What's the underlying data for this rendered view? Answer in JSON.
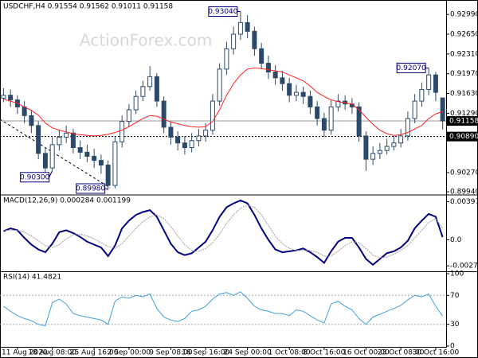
{
  "chart_data": [
    {
      "type": "candlestick",
      "title": "USDCHF,H4  0.91554 0.91562 0.91011 0.91158",
      "watermark": "ActionForex.com",
      "ylim": [
        0.899,
        0.9317
      ],
      "yticks": [
        {
          "value": 0.9299,
          "label": "0.92990"
        },
        {
          "value": 0.9265,
          "label": "0.92650"
        },
        {
          "value": 0.9231,
          "label": "0.92310"
        },
        {
          "value": 0.9197,
          "label": "0.91970"
        },
        {
          "value": 0.9163,
          "label": "0.91630"
        },
        {
          "value": 0.9129,
          "label": "0.91290"
        },
        {
          "value": 0.9027,
          "label": "0.90270"
        },
        {
          "value": 0.8994,
          "label": "0.89940"
        }
      ],
      "candles": {
        "color": "#2b4a6b",
        "open": [
          0.9155,
          0.916,
          0.9152,
          0.914,
          0.9125,
          0.9108,
          0.906,
          0.9035,
          0.9075,
          0.9088,
          0.9095,
          0.907,
          0.9062,
          0.9055,
          0.9048,
          0.904,
          0.9005,
          0.908,
          0.9115,
          0.9135,
          0.9158,
          0.9175,
          0.9192,
          0.915,
          0.9105,
          0.9088,
          0.9078,
          0.907,
          0.9082,
          0.909,
          0.91,
          0.915,
          0.9205,
          0.924,
          0.9265,
          0.9285,
          0.927,
          0.924,
          0.9215,
          0.92,
          0.919,
          0.918,
          0.916,
          0.9165,
          0.9158,
          0.914,
          0.912,
          0.91,
          0.914,
          0.915,
          0.9145,
          0.914,
          0.909,
          0.905,
          0.906,
          0.9065,
          0.9072,
          0.9078,
          0.909,
          0.912,
          0.915,
          0.917,
          0.9195,
          0.91554
        ],
        "high": [
          0.9172,
          0.917,
          0.916,
          0.915,
          0.9135,
          0.9115,
          0.907,
          0.9088,
          0.91,
          0.9108,
          0.9102,
          0.9082,
          0.9075,
          0.9068,
          0.9058,
          0.9048,
          0.909,
          0.9125,
          0.9145,
          0.9168,
          0.9185,
          0.921,
          0.9198,
          0.9158,
          0.9115,
          0.9098,
          0.909,
          0.9095,
          0.9102,
          0.9112,
          0.9162,
          0.9215,
          0.9252,
          0.9278,
          0.9304,
          0.9298,
          0.9278,
          0.925,
          0.9228,
          0.9212,
          0.9202,
          0.919,
          0.9178,
          0.9175,
          0.9168,
          0.915,
          0.913,
          0.9152,
          0.9162,
          0.916,
          0.9155,
          0.9148,
          0.9098,
          0.9072,
          0.9078,
          0.9085,
          0.909,
          0.9102,
          0.9132,
          0.9162,
          0.9182,
          0.9207,
          0.92,
          0.91562
        ],
        "low": [
          0.9148,
          0.914,
          0.9128,
          0.9112,
          0.9095,
          0.905,
          0.9022,
          0.903,
          0.9065,
          0.9078,
          0.906,
          0.905,
          0.9045,
          0.9035,
          0.9025,
          0.8998,
          0.9,
          0.907,
          0.9105,
          0.9128,
          0.915,
          0.9168,
          0.914,
          0.9095,
          0.9075,
          0.9065,
          0.9058,
          0.9062,
          0.9072,
          0.908,
          0.9092,
          0.9142,
          0.9195,
          0.923,
          0.9255,
          0.9258,
          0.9228,
          0.9205,
          0.9188,
          0.9178,
          0.9168,
          0.9148,
          0.915,
          0.9145,
          0.9128,
          0.9108,
          0.9088,
          0.9092,
          0.9132,
          0.9135,
          0.9128,
          0.908,
          0.903,
          0.904,
          0.905,
          0.9058,
          0.9065,
          0.907,
          0.9082,
          0.9112,
          0.914,
          0.916,
          0.915,
          0.91011
        ],
        "close": [
          0.916,
          0.9152,
          0.914,
          0.9125,
          0.9108,
          0.906,
          0.9035,
          0.9075,
          0.9088,
          0.9095,
          0.907,
          0.9062,
          0.9055,
          0.9048,
          0.904,
          0.9005,
          0.908,
          0.9115,
          0.9135,
          0.9158,
          0.9175,
          0.9192,
          0.915,
          0.9105,
          0.9088,
          0.9078,
          0.907,
          0.9082,
          0.909,
          0.91,
          0.915,
          0.9205,
          0.924,
          0.9265,
          0.9285,
          0.927,
          0.924,
          0.9215,
          0.92,
          0.919,
          0.918,
          0.916,
          0.9165,
          0.9158,
          0.914,
          0.912,
          0.91,
          0.914,
          0.915,
          0.9145,
          0.914,
          0.909,
          0.905,
          0.906,
          0.9065,
          0.9072,
          0.9078,
          0.909,
          0.912,
          0.915,
          0.917,
          0.9195,
          0.9165,
          0.91158
        ]
      },
      "series": [
        {
          "color": "#ff2020",
          "values": [
            0.9153,
            0.915,
            0.9146,
            0.914,
            0.9134,
            0.9126,
            0.9112,
            0.9104,
            0.91,
            0.9097,
            0.9094,
            0.9092,
            0.9091,
            0.909,
            0.9091,
            0.9093,
            0.9096,
            0.91,
            0.9106,
            0.9113,
            0.912,
            0.9125,
            0.9124,
            0.9119,
            0.9114,
            0.9111,
            0.9108,
            0.9106,
            0.9105,
            0.9106,
            0.9115,
            0.9135,
            0.916,
            0.918,
            0.9195,
            0.9205,
            0.9207,
            0.9206,
            0.9204,
            0.9202,
            0.92,
            0.9195,
            0.919,
            0.9185,
            0.9176,
            0.9165,
            0.9158,
            0.9152,
            0.9149,
            0.9147,
            0.9145,
            0.9135,
            0.9122,
            0.911,
            0.91,
            0.9094,
            0.9091,
            0.9092,
            0.9096,
            0.9102,
            0.9108,
            0.912,
            0.9128,
            0.9132
          ]
        }
      ],
      "annotations": [
        {
          "value": 0.9304,
          "label": "0.93040"
        },
        {
          "value": 0.9207,
          "label": "0.92070"
        },
        {
          "value": 0.903,
          "label": "0.90300"
        },
        {
          "value": 0.8998,
          "label": "0.89980"
        }
      ],
      "levels": [
        {
          "value": 0.91158,
          "label": "0.91158",
          "color": "#999999"
        },
        {
          "value": 0.9089,
          "label": "0.90890",
          "color": "#000000"
        }
      ]
    },
    {
      "type": "line",
      "title": "MACD(12,26,9) 0.000284 0.001199",
      "ylim": [
        -0.0032,
        0.0046
      ],
      "yticks": [
        {
          "value": 0.00397,
          "label": "0.00397"
        },
        {
          "value": 0,
          "label": "0.0"
        },
        {
          "value": -0.002713,
          "label": "-0.002713"
        }
      ],
      "series": [
        {
          "color": "#000080",
          "width": 2,
          "values": [
            0.0009,
            0.0012,
            0.001,
            0.0002,
            -0.0005,
            -0.001,
            -0.0013,
            -0.0004,
            0.0008,
            0.001,
            0.0007,
            0.0003,
            -0.0002,
            -0.0005,
            -0.0008,
            -0.0017,
            -0.0006,
            0.0012,
            0.002,
            0.0026,
            0.0029,
            0.0031,
            0.0024,
            0.001,
            -0.0004,
            -0.0013,
            -0.0016,
            -0.0014,
            -0.0008,
            -0.0002,
            0.001,
            0.0024,
            0.0034,
            0.0038,
            0.0041,
            0.0038,
            0.0026,
            0.0012,
            0.0,
            -0.001,
            -0.0013,
            -0.0012,
            -0.0011,
            -0.0009,
            -0.0013,
            -0.0018,
            -0.0024,
            -0.0012,
            -0.0002,
            0.0002,
            0.0002,
            -0.0008,
            -0.002,
            -0.0026,
            -0.002,
            -0.0014,
            -0.0012,
            -0.0008,
            -0.0001,
            0.0012,
            0.002,
            0.0027,
            0.0024,
            0.000284
          ]
        },
        {
          "color": "#a0a0a0",
          "width": 1,
          "values": [
            0.001,
            0.001,
            0.001,
            0.0008,
            0.0004,
            -0.0001,
            -0.0006,
            -0.0008,
            -0.0005,
            0.0001,
            0.0005,
            0.0006,
            0.0004,
            0.0001,
            -0.0003,
            -0.0007,
            -0.0009,
            -0.0004,
            0.0004,
            0.0012,
            0.0019,
            0.0024,
            0.0026,
            0.0022,
            0.0014,
            0.0004,
            -0.0005,
            -0.0011,
            -0.0012,
            -0.0009,
            -0.0003,
            0.0006,
            0.0017,
            0.0026,
            0.0033,
            0.0036,
            0.0034,
            0.0026,
            0.0015,
            0.0004,
            -0.0004,
            -0.0009,
            -0.0011,
            -0.0011,
            -0.0011,
            -0.0013,
            -0.0017,
            -0.0017,
            -0.0012,
            -0.0006,
            -0.0002,
            -0.0003,
            -0.0009,
            -0.0016,
            -0.0019,
            -0.0018,
            -0.0015,
            -0.0011,
            -0.0006,
            0.0002,
            0.001,
            0.0018,
            0.0022,
            0.001199
          ]
        }
      ]
    },
    {
      "type": "line",
      "title": "RSI(14) 41.4821",
      "ylim": [
        0,
        100
      ],
      "yticks": [
        100,
        70,
        30,
        0
      ],
      "levels": [
        70,
        30
      ],
      "series": [
        {
          "color": "#3fa0e0",
          "width": 1,
          "values": [
            55,
            48,
            42,
            38,
            35,
            30,
            28,
            60,
            65,
            58,
            45,
            42,
            40,
            38,
            36,
            30,
            62,
            68,
            66,
            70,
            68,
            72,
            52,
            40,
            36,
            34,
            38,
            48,
            50,
            55,
            65,
            72,
            74,
            70,
            75,
            66,
            55,
            50,
            48,
            45,
            45,
            42,
            50,
            48,
            42,
            36,
            32,
            58,
            62,
            55,
            50,
            38,
            30,
            40,
            44,
            48,
            52,
            56,
            64,
            70,
            68,
            72,
            55,
            41.4821
          ]
        }
      ],
      "categories": [
        null,
        null,
        "11 Aug 2020",
        null,
        null,
        null,
        null,
        "18 Aug 08:00",
        null,
        null,
        null,
        null,
        null,
        "25 Aug 16:00",
        null,
        null,
        null,
        null,
        "2 Sep 00:00",
        null,
        null,
        null,
        null,
        null,
        "9 Sep 08:00",
        null,
        null,
        null,
        null,
        "16 Sep 16:00",
        null,
        null,
        null,
        null,
        null,
        "24 Sep 00:00",
        null,
        null,
        null,
        null,
        null,
        "1 Oct 08:00",
        null,
        null,
        null,
        null,
        "8 Oct 16:00",
        null,
        null,
        null,
        null,
        null,
        "16 Oct 00:00",
        null,
        null,
        null,
        null,
        "23 Oct 08:00",
        null,
        null,
        null,
        null,
        "30 Oct 16:00",
        null
      ]
    }
  ]
}
